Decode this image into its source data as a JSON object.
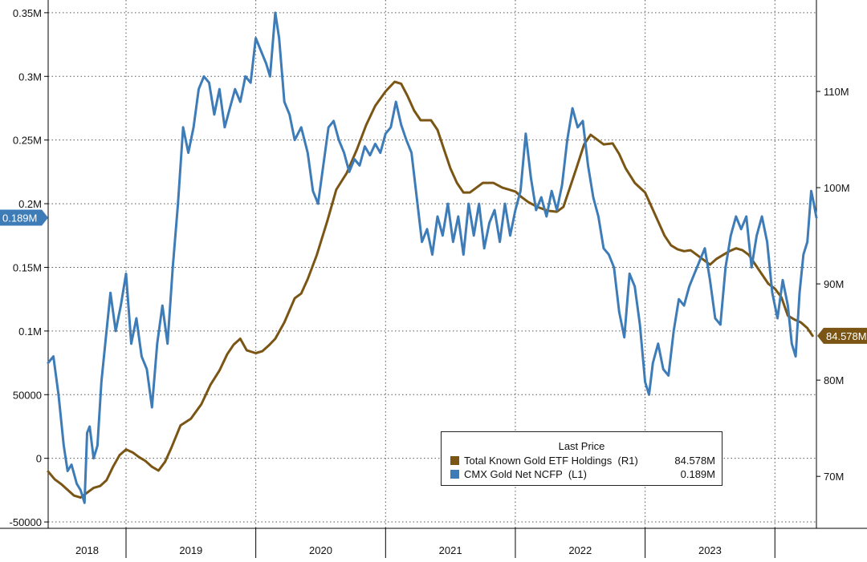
{
  "chart_data": {
    "type": "line",
    "x_labels": [
      "2018",
      "2019",
      "2020",
      "2021",
      "2022",
      "2023"
    ],
    "x_range": [
      2017.9,
      2023.82
    ],
    "y_left": {
      "ticks": [
        -50000,
        0,
        50000,
        100000,
        150000,
        200000,
        250000,
        300000,
        350000
      ],
      "tick_labels": [
        "-50000",
        "0",
        "50000",
        "0.1M",
        "0.15M",
        "0.2M",
        "0.25M",
        "0.3M",
        "0.35M"
      ],
      "range": [
        -55000,
        360000
      ]
    },
    "y_right": {
      "ticks": [
        70,
        80,
        90,
        100,
        110
      ],
      "tick_labels": [
        "70M",
        "80M",
        "90M",
        "100M",
        "110M"
      ],
      "range": [
        64.6,
        119.5
      ]
    },
    "series": [
      {
        "name": "Total Known Gold ETF Holdings",
        "axis": "right",
        "color": "#7a5514",
        "last_value_label": "84.578M",
        "points": [
          [
            2017.9,
            70.5
          ],
          [
            2017.95,
            69.7
          ],
          [
            2018.0,
            69.2
          ],
          [
            2018.05,
            68.6
          ],
          [
            2018.1,
            68.0
          ],
          [
            2018.15,
            67.8
          ],
          [
            2018.2,
            68.3
          ],
          [
            2018.25,
            68.8
          ],
          [
            2018.3,
            69.0
          ],
          [
            2018.35,
            69.6
          ],
          [
            2018.4,
            71.0
          ],
          [
            2018.45,
            72.2
          ],
          [
            2018.5,
            72.8
          ],
          [
            2018.55,
            72.5
          ],
          [
            2018.6,
            72.0
          ],
          [
            2018.65,
            71.6
          ],
          [
            2018.7,
            71.0
          ],
          [
            2018.75,
            70.6
          ],
          [
            2018.8,
            71.5
          ],
          [
            2018.85,
            73.0
          ],
          [
            2018.92,
            75.3
          ],
          [
            2019.0,
            76.0
          ],
          [
            2019.08,
            77.5
          ],
          [
            2019.15,
            79.5
          ],
          [
            2019.22,
            81.0
          ],
          [
            2019.28,
            82.7
          ],
          [
            2019.33,
            83.7
          ],
          [
            2019.38,
            84.3
          ],
          [
            2019.43,
            83.1
          ],
          [
            2019.5,
            82.8
          ],
          [
            2019.55,
            83.0
          ],
          [
            2019.6,
            83.6
          ],
          [
            2019.65,
            84.3
          ],
          [
            2019.72,
            86.0
          ],
          [
            2019.8,
            88.5
          ],
          [
            2019.85,
            89.0
          ],
          [
            2019.9,
            90.5
          ],
          [
            2019.97,
            93.0
          ],
          [
            2020.05,
            96.5
          ],
          [
            2020.12,
            99.8
          ],
          [
            2020.2,
            101.5
          ],
          [
            2020.28,
            104.0
          ],
          [
            2020.35,
            106.5
          ],
          [
            2020.42,
            108.5
          ],
          [
            2020.5,
            110.0
          ],
          [
            2020.57,
            111.0
          ],
          [
            2020.62,
            110.8
          ],
          [
            2020.67,
            109.5
          ],
          [
            2020.72,
            108.0
          ],
          [
            2020.77,
            107.0
          ],
          [
            2020.85,
            107.0
          ],
          [
            2020.9,
            106.0
          ],
          [
            2020.95,
            104.0
          ],
          [
            2021.0,
            102.0
          ],
          [
            2021.05,
            100.5
          ],
          [
            2021.1,
            99.5
          ],
          [
            2021.15,
            99.5
          ],
          [
            2021.2,
            100.0
          ],
          [
            2021.25,
            100.5
          ],
          [
            2021.33,
            100.5
          ],
          [
            2021.4,
            100.0
          ],
          [
            2021.5,
            99.6
          ],
          [
            2021.55,
            99.0
          ],
          [
            2021.6,
            98.5
          ],
          [
            2021.67,
            98.0
          ],
          [
            2021.75,
            97.6
          ],
          [
            2021.82,
            97.5
          ],
          [
            2021.87,
            98.0
          ],
          [
            2021.92,
            100.0
          ],
          [
            2021.97,
            102.0
          ],
          [
            2022.03,
            104.5
          ],
          [
            2022.08,
            105.5
          ],
          [
            2022.13,
            105.0
          ],
          [
            2022.18,
            104.5
          ],
          [
            2022.25,
            104.6
          ],
          [
            2022.3,
            103.5
          ],
          [
            2022.35,
            102.0
          ],
          [
            2022.42,
            100.5
          ],
          [
            2022.5,
            99.5
          ],
          [
            2022.55,
            98.0
          ],
          [
            2022.6,
            96.5
          ],
          [
            2022.65,
            95.0
          ],
          [
            2022.7,
            94.0
          ],
          [
            2022.75,
            93.6
          ],
          [
            2022.8,
            93.4
          ],
          [
            2022.85,
            93.5
          ],
          [
            2022.9,
            93.0
          ],
          [
            2022.95,
            92.5
          ],
          [
            2023.0,
            92.0
          ],
          [
            2023.05,
            92.6
          ],
          [
            2023.1,
            93.0
          ],
          [
            2023.15,
            93.4
          ],
          [
            2023.2,
            93.7
          ],
          [
            2023.25,
            93.5
          ],
          [
            2023.3,
            93.0
          ],
          [
            2023.35,
            92.0
          ],
          [
            2023.4,
            91.0
          ],
          [
            2023.45,
            90.0
          ],
          [
            2023.5,
            89.5
          ],
          [
            2023.55,
            88.6
          ],
          [
            2023.6,
            86.7
          ],
          [
            2023.65,
            86.3
          ],
          [
            2023.7,
            86.0
          ],
          [
            2023.75,
            85.4
          ],
          [
            2023.79,
            84.6
          ]
        ]
      },
      {
        "name": "CMX Gold Net NCFP",
        "axis": "left",
        "color": "#3e7cb8",
        "last_value_label": "0.189M",
        "points": [
          [
            2017.9,
            75000
          ],
          [
            2017.94,
            80000
          ],
          [
            2017.98,
            50000
          ],
          [
            2018.02,
            10000
          ],
          [
            2018.05,
            -10000
          ],
          [
            2018.08,
            -5000
          ],
          [
            2018.12,
            -20000
          ],
          [
            2018.15,
            -25000
          ],
          [
            2018.18,
            -35000
          ],
          [
            2018.2,
            20000
          ],
          [
            2018.22,
            25000
          ],
          [
            2018.25,
            0
          ],
          [
            2018.28,
            10000
          ],
          [
            2018.31,
            60000
          ],
          [
            2018.34,
            90000
          ],
          [
            2018.38,
            130000
          ],
          [
            2018.42,
            100000
          ],
          [
            2018.46,
            120000
          ],
          [
            2018.5,
            145000
          ],
          [
            2018.54,
            90000
          ],
          [
            2018.58,
            110000
          ],
          [
            2018.62,
            80000
          ],
          [
            2018.66,
            70000
          ],
          [
            2018.7,
            40000
          ],
          [
            2018.74,
            90000
          ],
          [
            2018.78,
            120000
          ],
          [
            2018.82,
            90000
          ],
          [
            2018.86,
            150000
          ],
          [
            2018.9,
            200000
          ],
          [
            2018.94,
            260000
          ],
          [
            2018.98,
            240000
          ],
          [
            2019.02,
            260000
          ],
          [
            2019.06,
            290000
          ],
          [
            2019.1,
            300000
          ],
          [
            2019.14,
            295000
          ],
          [
            2019.18,
            270000
          ],
          [
            2019.22,
            290000
          ],
          [
            2019.26,
            260000
          ],
          [
            2019.3,
            275000
          ],
          [
            2019.34,
            290000
          ],
          [
            2019.38,
            280000
          ],
          [
            2019.42,
            300000
          ],
          [
            2019.46,
            295000
          ],
          [
            2019.5,
            330000
          ],
          [
            2019.54,
            320000
          ],
          [
            2019.58,
            310000
          ],
          [
            2019.61,
            300000
          ],
          [
            2019.65,
            350000
          ],
          [
            2019.68,
            330000
          ],
          [
            2019.72,
            280000
          ],
          [
            2019.76,
            270000
          ],
          [
            2019.8,
            250000
          ],
          [
            2019.85,
            260000
          ],
          [
            2019.9,
            240000
          ],
          [
            2019.94,
            210000
          ],
          [
            2019.98,
            200000
          ],
          [
            2020.02,
            230000
          ],
          [
            2020.06,
            260000
          ],
          [
            2020.1,
            265000
          ],
          [
            2020.14,
            250000
          ],
          [
            2020.18,
            240000
          ],
          [
            2020.22,
            225000
          ],
          [
            2020.26,
            235000
          ],
          [
            2020.3,
            230000
          ],
          [
            2020.34,
            245000
          ],
          [
            2020.38,
            238000
          ],
          [
            2020.42,
            247000
          ],
          [
            2020.46,
            240000
          ],
          [
            2020.5,
            255000
          ],
          [
            2020.54,
            260000
          ],
          [
            2020.58,
            280000
          ],
          [
            2020.62,
            262000
          ],
          [
            2020.66,
            250000
          ],
          [
            2020.7,
            240000
          ],
          [
            2020.74,
            205000
          ],
          [
            2020.78,
            170000
          ],
          [
            2020.82,
            180000
          ],
          [
            2020.86,
            160000
          ],
          [
            2020.9,
            190000
          ],
          [
            2020.94,
            175000
          ],
          [
            2020.98,
            200000
          ],
          [
            2021.02,
            170000
          ],
          [
            2021.06,
            190000
          ],
          [
            2021.1,
            160000
          ],
          [
            2021.14,
            200000
          ],
          [
            2021.18,
            175000
          ],
          [
            2021.22,
            200000
          ],
          [
            2021.26,
            165000
          ],
          [
            2021.3,
            185000
          ],
          [
            2021.34,
            195000
          ],
          [
            2021.38,
            170000
          ],
          [
            2021.42,
            200000
          ],
          [
            2021.46,
            175000
          ],
          [
            2021.5,
            195000
          ],
          [
            2021.54,
            210000
          ],
          [
            2021.58,
            255000
          ],
          [
            2021.62,
            220000
          ],
          [
            2021.66,
            195000
          ],
          [
            2021.7,
            205000
          ],
          [
            2021.74,
            190000
          ],
          [
            2021.78,
            210000
          ],
          [
            2021.82,
            195000
          ],
          [
            2021.86,
            215000
          ],
          [
            2021.9,
            250000
          ],
          [
            2021.94,
            275000
          ],
          [
            2021.98,
            260000
          ],
          [
            2022.02,
            265000
          ],
          [
            2022.06,
            230000
          ],
          [
            2022.1,
            205000
          ],
          [
            2022.14,
            190000
          ],
          [
            2022.18,
            165000
          ],
          [
            2022.22,
            160000
          ],
          [
            2022.26,
            150000
          ],
          [
            2022.3,
            115000
          ],
          [
            2022.34,
            95000
          ],
          [
            2022.38,
            145000
          ],
          [
            2022.42,
            135000
          ],
          [
            2022.46,
            105000
          ],
          [
            2022.5,
            60000
          ],
          [
            2022.53,
            50000
          ],
          [
            2022.56,
            75000
          ],
          [
            2022.6,
            90000
          ],
          [
            2022.64,
            70000
          ],
          [
            2022.68,
            65000
          ],
          [
            2022.72,
            100000
          ],
          [
            2022.76,
            125000
          ],
          [
            2022.8,
            120000
          ],
          [
            2022.84,
            135000
          ],
          [
            2022.88,
            145000
          ],
          [
            2022.92,
            155000
          ],
          [
            2022.96,
            165000
          ],
          [
            2023.0,
            140000
          ],
          [
            2023.04,
            110000
          ],
          [
            2023.08,
            105000
          ],
          [
            2023.12,
            150000
          ],
          [
            2023.16,
            175000
          ],
          [
            2023.2,
            190000
          ],
          [
            2023.24,
            180000
          ],
          [
            2023.28,
            190000
          ],
          [
            2023.32,
            150000
          ],
          [
            2023.36,
            175000
          ],
          [
            2023.4,
            190000
          ],
          [
            2023.44,
            170000
          ],
          [
            2023.48,
            130000
          ],
          [
            2023.52,
            110000
          ],
          [
            2023.56,
            140000
          ],
          [
            2023.6,
            120000
          ],
          [
            2023.63,
            90000
          ],
          [
            2023.66,
            80000
          ],
          [
            2023.69,
            130000
          ],
          [
            2023.72,
            160000
          ],
          [
            2023.75,
            170000
          ],
          [
            2023.78,
            210000
          ],
          [
            2023.8,
            200000
          ],
          [
            2023.82,
            189000
          ]
        ]
      }
    ]
  },
  "legend": {
    "title": "Last Price",
    "items": [
      {
        "name": "Total Known Gold ETF Holdings",
        "axis_tag": "(R1)",
        "value": "84.578M",
        "color": "#7a5514"
      },
      {
        "name": "CMX Gold Net NCFP",
        "axis_tag": "(L1)",
        "value": "0.189M",
        "color": "#3e7cb8"
      }
    ]
  }
}
